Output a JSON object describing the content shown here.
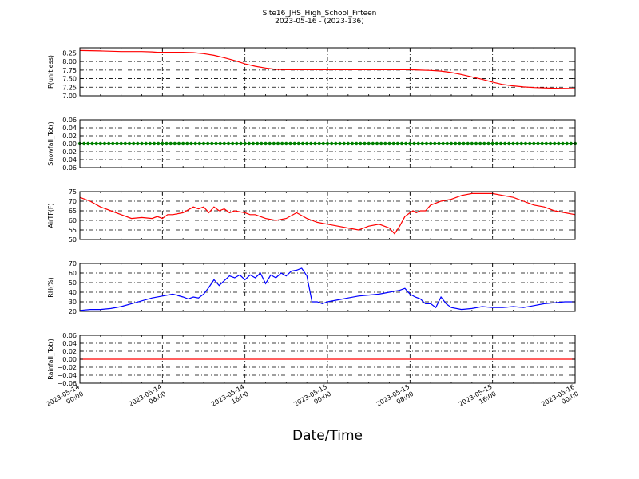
{
  "figure": {
    "title_line1": "Site16_JHS_High_School_Fifteen",
    "title_line2": "2023-05-16 - (2023-136)",
    "xlabel": "Date/Time"
  },
  "x_ticks": [
    {
      "line1": "2023-05-14",
      "line2": "00:00",
      "hour": 0
    },
    {
      "line1": "2023-05-14",
      "line2": "08:00",
      "hour": 8
    },
    {
      "line1": "2023-05-14",
      "line2": "16:00",
      "hour": 16
    },
    {
      "line1": "2023-05-15",
      "line2": "00:00",
      "hour": 24
    },
    {
      "line1": "2023-05-15",
      "line2": "08:00",
      "hour": 32
    },
    {
      "line1": "2023-05-15",
      "line2": "16:00",
      "hour": 40
    },
    {
      "line1": "2023-05-16",
      "line2": "00:00",
      "hour": 48
    }
  ],
  "chart_data": [
    {
      "type": "line",
      "ylabel": "P(unitless)",
      "ylim": [
        7.0,
        8.4
      ],
      "yticks": [
        "7.00",
        "7.25",
        "7.50",
        "7.75",
        "8.00",
        "8.25"
      ],
      "ytick_values": [
        7.0,
        7.25,
        7.5,
        7.75,
        8.0,
        8.25
      ],
      "color": "#ff0000",
      "grid": true,
      "x_hours": [
        0,
        2,
        4,
        6,
        7,
        7.5,
        8,
        10,
        11,
        12,
        13,
        14,
        15,
        16,
        17,
        18,
        19,
        20,
        22,
        24,
        26,
        28,
        30,
        31,
        32,
        33,
        34,
        35,
        36,
        37,
        38,
        39,
        40,
        41,
        42,
        43,
        44,
        46,
        48
      ],
      "values": [
        8.32,
        8.31,
        8.29,
        8.29,
        8.28,
        8.27,
        8.27,
        8.27,
        8.26,
        8.23,
        8.18,
        8.11,
        8.03,
        7.93,
        7.86,
        7.81,
        7.77,
        7.76,
        7.76,
        7.76,
        7.76,
        7.76,
        7.76,
        7.76,
        7.76,
        7.75,
        7.74,
        7.72,
        7.68,
        7.62,
        7.55,
        7.48,
        7.4,
        7.33,
        7.29,
        7.26,
        7.24,
        7.22,
        7.21
      ]
    },
    {
      "type": "line",
      "ylabel": "Snowfall_Tot()",
      "ylim": [
        -0.06,
        0.06
      ],
      "yticks": [
        "0.06",
        "0.04",
        "0.02",
        "0.00",
        "−0.02",
        "−0.04",
        "−0.06"
      ],
      "ytick_values": [
        0.06,
        0.04,
        0.02,
        0.0,
        -0.02,
        -0.04,
        -0.06
      ],
      "color": "#008000",
      "marker": "dots",
      "grid": true,
      "x_hours": [
        0,
        48
      ],
      "values": [
        0,
        0
      ]
    },
    {
      "type": "line",
      "ylabel": "AirTF(F)",
      "ylim": [
        50,
        75
      ],
      "yticks": [
        "75",
        "70",
        "65",
        "60",
        "55",
        "50"
      ],
      "ytick_values": [
        75,
        70,
        65,
        60,
        55,
        50
      ],
      "color": "#ff0000",
      "grid": true,
      "x_hours": [
        0,
        1,
        2,
        3,
        4,
        5,
        6,
        7,
        7.5,
        8,
        8.5,
        9,
        10,
        11,
        11.5,
        12,
        12.5,
        13,
        13.5,
        14,
        14.5,
        15,
        16,
        16.5,
        17,
        17.5,
        18,
        19,
        20,
        21,
        22,
        22.5,
        23,
        24,
        25,
        26,
        27,
        28,
        29,
        30,
        30.5,
        31,
        31.5,
        32,
        32.3,
        32.6,
        33,
        33.5,
        34,
        35,
        36,
        37,
        38,
        39,
        40,
        41,
        42,
        43,
        44,
        45,
        46,
        47,
        48
      ],
      "values": [
        72,
        70,
        67,
        65,
        63,
        61,
        61.5,
        61,
        62,
        61,
        63,
        63,
        64,
        67,
        66,
        67,
        64,
        67,
        65,
        66,
        64,
        65,
        64,
        63,
        63,
        62,
        61,
        60,
        61,
        64,
        61,
        60,
        59,
        58,
        57,
        56,
        55,
        57,
        58,
        56,
        53,
        57,
        62,
        64,
        65,
        64,
        65,
        65,
        68,
        70,
        71,
        73,
        74,
        74,
        74,
        73,
        72,
        70,
        68,
        67,
        65,
        64,
        63
      ]
    },
    {
      "type": "line",
      "ylabel": "RH(%)",
      "ylim": [
        20,
        70
      ],
      "yticks": [
        "70",
        "60",
        "50",
        "40",
        "30",
        "20"
      ],
      "ytick_values": [
        70,
        60,
        50,
        40,
        30,
        20
      ],
      "color": "#0000ff",
      "grid": true,
      "x_hours": [
        0,
        1,
        2,
        3,
        4,
        5,
        6,
        7,
        8,
        9,
        10,
        10.5,
        11,
        11.5,
        12,
        12.5,
        13,
        13.5,
        14,
        14.5,
        15,
        15.5,
        16,
        16.5,
        17,
        17.5,
        18,
        18.5,
        19,
        19.5,
        20,
        20.5,
        21,
        21.5,
        22,
        22.5,
        23,
        23.5,
        24,
        25,
        26,
        27,
        28,
        29,
        30,
        31,
        31.5,
        32,
        32.5,
        33,
        33.5,
        34,
        34.5,
        35,
        35.5,
        36,
        37,
        38,
        39,
        40,
        41,
        42,
        43,
        44,
        45,
        46,
        47,
        48
      ],
      "values": [
        21,
        22,
        22,
        23,
        25,
        28,
        31,
        34,
        36,
        38,
        35,
        33,
        35,
        34,
        38,
        45,
        53,
        47,
        52,
        57,
        55,
        58,
        53,
        58,
        55,
        60,
        49,
        58,
        55,
        60,
        57,
        62,
        63,
        65,
        57,
        30,
        30,
        28,
        30,
        32,
        34,
        36,
        37,
        38,
        40,
        42,
        44,
        38,
        35,
        33,
        28,
        28,
        24,
        35,
        28,
        24,
        22,
        23,
        25,
        24,
        24,
        25,
        24,
        26,
        28,
        29,
        30,
        30
      ]
    },
    {
      "type": "line",
      "ylabel": "Rainfall_Tot()",
      "ylim": [
        -0.06,
        0.06
      ],
      "yticks": [
        "0.06",
        "0.04",
        "0.02",
        "0.00",
        "−0.02",
        "−0.04",
        "−0.06"
      ],
      "ytick_values": [
        0.06,
        0.04,
        0.02,
        0.0,
        -0.02,
        -0.04,
        -0.06
      ],
      "color": "#ff0000",
      "grid": true,
      "x_hours": [
        0,
        48
      ],
      "values": [
        0,
        0
      ]
    }
  ]
}
